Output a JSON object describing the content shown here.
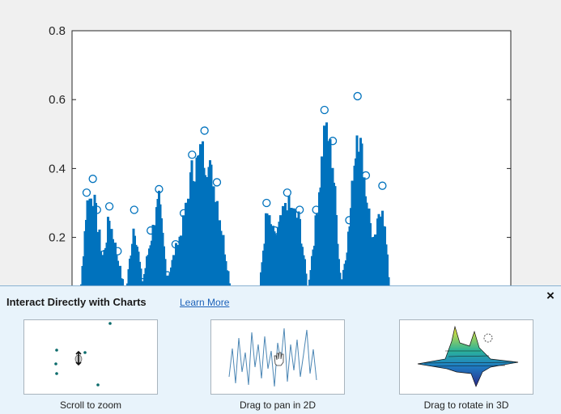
{
  "chart_data": {
    "type": "scatter",
    "title": "",
    "xlabel": "",
    "ylabel": "",
    "ylim": [
      -0.2,
      0.8
    ],
    "yticks": [
      "-0.2",
      "0",
      "0.2",
      "0.4",
      "0.6",
      "0.8"
    ],
    "xticks": [],
    "grid": false,
    "marker": "circle-open",
    "series": [
      {
        "color": "#0072bd",
        "envelope": {
          "x": [
            0,
            0.03,
            0.045,
            0.06,
            0.07,
            0.085,
            0.1,
            0.12,
            0.14,
            0.16,
            0.18,
            0.2,
            0.22,
            0.24,
            0.26,
            0.28,
            0.3,
            0.33,
            0.36,
            0.4,
            0.43,
            0.46,
            0.48,
            0.5,
            0.53,
            0.56,
            0.58,
            0.6,
            0.62,
            0.64,
            0.66,
            0.68,
            0.7,
            0.72,
            0.74,
            0.76,
            0.78,
            0.8,
            0.84,
            0.88,
            0.92,
            0.96,
            1.0
          ],
          "y": [
            0,
            0.02,
            0.33,
            0.37,
            0.28,
            0.15,
            0.29,
            0.16,
            0.03,
            0.28,
            0.07,
            0.22,
            0.34,
            0.09,
            0.18,
            0.27,
            0.44,
            0.51,
            0.36,
            0.0,
            0.0,
            0.0,
            0.3,
            0.22,
            0.33,
            0.28,
            0.05,
            0.28,
            0.57,
            0.48,
            0.06,
            0.25,
            0.61,
            0.38,
            0.19,
            0.35,
            0.02,
            0.0,
            0.0,
            0.0,
            0.0,
            0.0,
            0.0
          ]
        }
      }
    ]
  },
  "tip": {
    "title": "Interact Directly with Charts",
    "learn_more": "Learn More",
    "close": "×",
    "demos": [
      {
        "label": "Scroll to zoom"
      },
      {
        "label": "Drag to pan in 2D"
      },
      {
        "label": "Drag to rotate in 3D"
      }
    ]
  }
}
